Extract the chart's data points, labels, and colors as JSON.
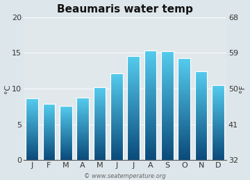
{
  "title": "Beaumaris water temp",
  "months": [
    "J",
    "F",
    "M",
    "A",
    "M",
    "J",
    "J",
    "A",
    "S",
    "O",
    "N",
    "D"
  ],
  "values_c": [
    8.6,
    7.9,
    7.6,
    8.7,
    10.2,
    12.1,
    14.5,
    15.3,
    15.2,
    14.2,
    12.4,
    10.5
  ],
  "ylim_c": [
    0,
    20
  ],
  "yticks_c": [
    0,
    5,
    10,
    15,
    20
  ],
  "ylim_f": [
    32,
    68
  ],
  "yticks_f": [
    32,
    41,
    50,
    59,
    68
  ],
  "ylabel_left": "°C",
  "ylabel_right": "°F",
  "bar_color_top": "#55ccee",
  "bar_color_bottom": "#0a4a7a",
  "bg_color": "#e0e8ec",
  "fig_bg": "#dde6ea",
  "title_fontsize": 11,
  "axis_fontsize": 8,
  "tick_fontsize": 8,
  "watermark": "© www.seatemperature.org",
  "bar_edge_color": "#ffffff",
  "bar_width": 0.72
}
